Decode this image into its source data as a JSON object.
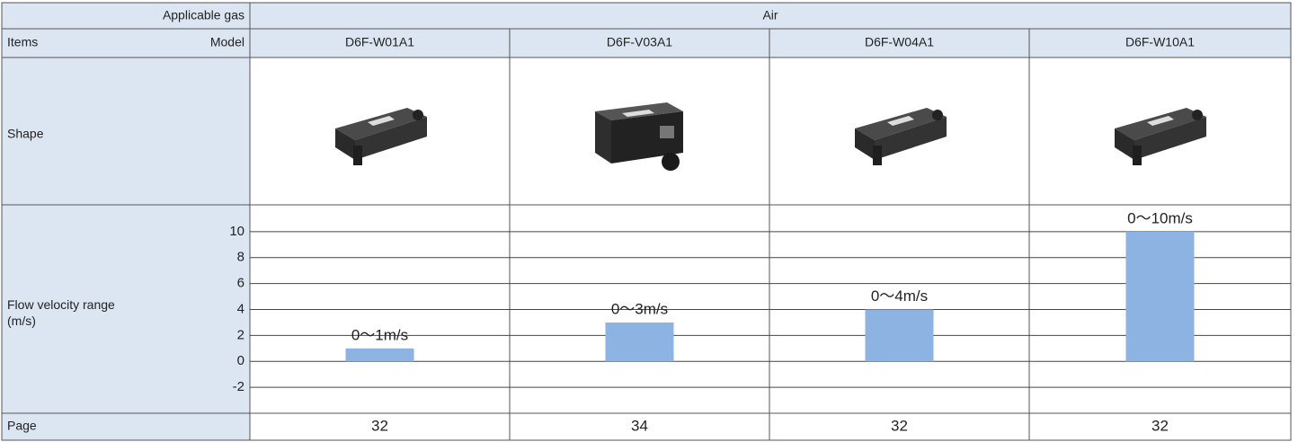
{
  "header": {
    "applicable_gas_label": "Applicable gas",
    "gas": "Air",
    "items_label": "Items",
    "model_label": "Model"
  },
  "shape_label": "Shape",
  "page_row": {
    "label": "Page",
    "values": [
      32,
      34,
      32,
      32
    ]
  },
  "chart_data": {
    "type": "bar",
    "y_label": "Flow velocity range\n(m/s)",
    "categories": [
      "D6F-W01A1",
      "D6F-V03A1",
      "D6F-W04A1",
      "D6F-W10A1"
    ],
    "values": [
      1,
      3,
      4,
      10
    ],
    "value_labels": [
      "0～1m/s",
      "0～3m/s",
      "0～4m/s",
      "0～10m/s"
    ],
    "color": "#8db3e2",
    "ylim": [
      -4,
      12
    ],
    "yticks": [
      10,
      8,
      6,
      4,
      2,
      0,
      -2
    ],
    "grid": true
  }
}
